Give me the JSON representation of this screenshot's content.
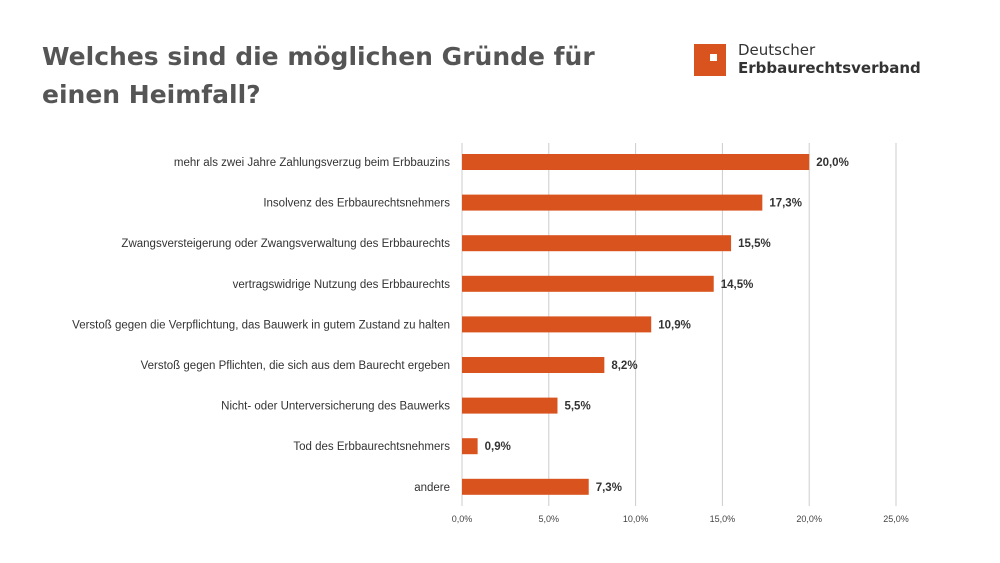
{
  "header": {
    "title": "Welches sind die möglichen Gründe für einen Heimfall?"
  },
  "logo": {
    "line1": "Deutscher",
    "line2": "Erbbaurechtsverband",
    "color": "#d9531e"
  },
  "chart_data": {
    "type": "bar",
    "orientation": "horizontal",
    "title": "Welches sind die möglichen Gründe für einen Heimfall?",
    "categories": [
      "mehr als zwei Jahre Zahlungsverzug beim Erbbauzins",
      "Insolvenz des Erbbaurechtsnehmers",
      "Zwangsversteigerung oder Zwangsverwaltung des Erbbaurechts",
      "vertragswidrige Nutzung des Erbbaurechts",
      "Verstoß gegen die Verpflichtung, das Bauwerk in gutem Zustand zu halten",
      "Verstoß gegen Pflichten, die sich aus dem Baurecht ergeben",
      "Nicht- oder Unterversicherung des Bauwerks",
      "Tod des Erbbaurechtsnehmers",
      "andere"
    ],
    "values": [
      20.0,
      17.3,
      15.5,
      14.5,
      10.9,
      8.2,
      5.5,
      0.9,
      7.3
    ],
    "data_labels": [
      "20,0%",
      "17,3%",
      "15,5%",
      "14,5%",
      "10,9%",
      "8,2%",
      "5,5%",
      "0,9%",
      "7,3%"
    ],
    "xlim": [
      0,
      25
    ],
    "xticks": [
      0,
      5,
      10,
      15,
      20,
      25
    ],
    "xtick_labels": [
      "0,0%",
      "5,0%",
      "10,0%",
      "15,0%",
      "20,0%",
      "25,0%"
    ],
    "grid": true,
    "legend": "none",
    "bar_color": "#d9531e"
  }
}
